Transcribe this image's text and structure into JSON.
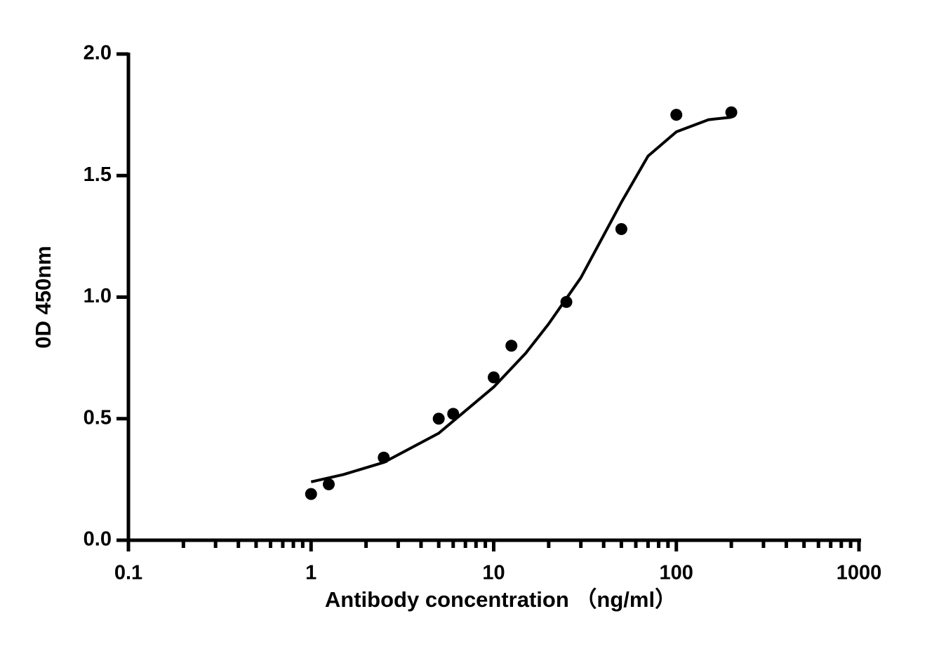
{
  "chart_data": {
    "type": "scatter",
    "x_label": "Antibody concentration （ng/ml）",
    "y_label": "0D 450nm",
    "x_log": true,
    "xlim": [
      0.1,
      1000
    ],
    "xticks": [
      0.1,
      1,
      10,
      100,
      1000
    ],
    "xminorticks": [
      0.2,
      0.3,
      0.4,
      0.5,
      0.6,
      0.7,
      0.8,
      0.9,
      2,
      3,
      4,
      5,
      6,
      7,
      8,
      9,
      20,
      30,
      40,
      50,
      60,
      70,
      80,
      90,
      200,
      300,
      400,
      500,
      600,
      700,
      800,
      900
    ],
    "ylim": [
      0,
      2
    ],
    "yticks": [
      {
        "value": 0,
        "label": "0.0"
      },
      {
        "value": 0.5,
        "label": "0.5"
      },
      {
        "value": 1,
        "label": "1.0"
      },
      {
        "value": 1.5,
        "label": "1.5"
      },
      {
        "value": 2,
        "label": "2.0"
      }
    ],
    "color": "#000000",
    "series": [
      {
        "type": "scatter",
        "x": [
          1,
          1.25,
          2.5,
          5,
          6,
          10,
          12.5,
          25,
          50,
          100,
          200
        ],
        "values": [
          0.19,
          0.23,
          0.34,
          0.5,
          0.52,
          0.67,
          0.8,
          0.98,
          1.28,
          1.75,
          1.76
        ]
      },
      {
        "type": "line",
        "x": [
          1,
          1.5,
          2.5,
          5,
          10,
          15,
          20,
          30,
          50,
          70,
          100,
          150,
          200
        ],
        "values": [
          0.24,
          0.27,
          0.32,
          0.44,
          0.63,
          0.77,
          0.89,
          1.08,
          1.39,
          1.58,
          1.68,
          1.73,
          1.74
        ]
      }
    ]
  }
}
